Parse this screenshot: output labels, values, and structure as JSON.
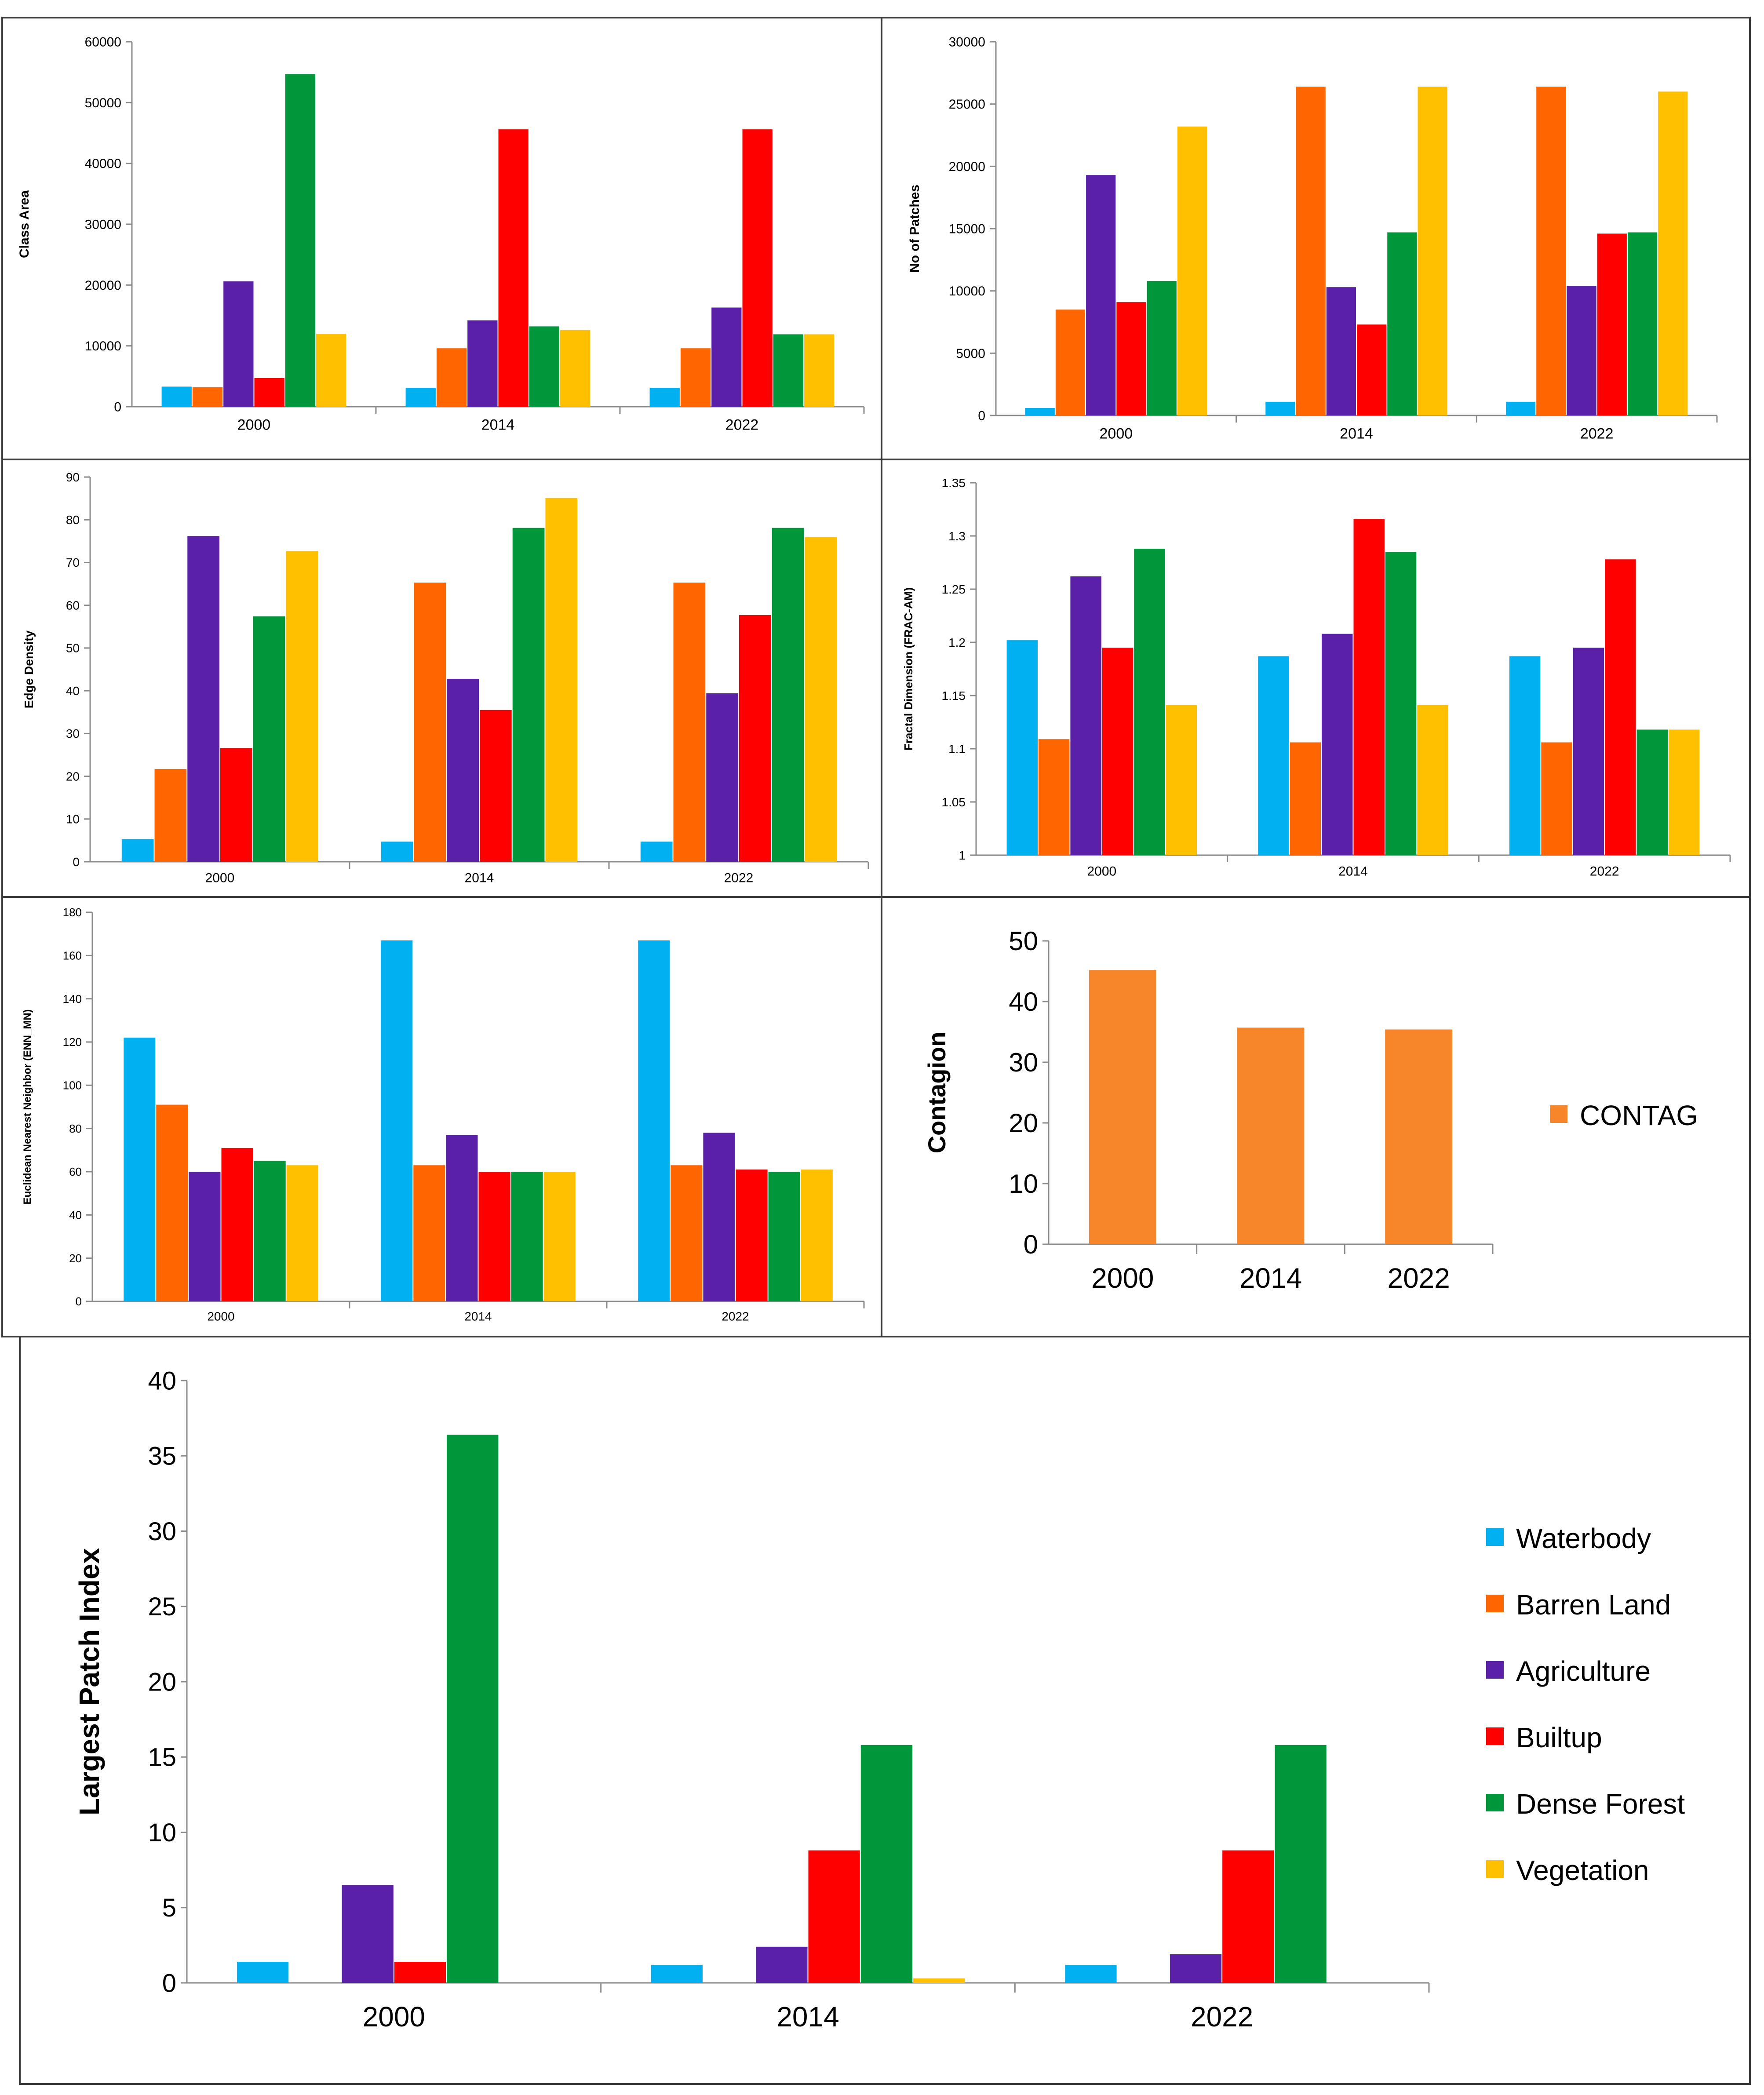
{
  "series_names": [
    "Waterbody",
    "Barren Land",
    "Agriculture",
    "Builtup",
    "Dense Forest",
    "Vegetation"
  ],
  "series_colors": [
    "#00b0f0",
    "#ff6600",
    "#5b20a8",
    "#ff0000",
    "#00963a",
    "#ffc000"
  ],
  "contag_color": "#f7862a",
  "chart_data": [
    {
      "id": "class_area",
      "type": "bar",
      "title": "",
      "xlabel": "",
      "ylabel": "Class Area",
      "categories": [
        "2000",
        "2014",
        "2022"
      ],
      "ylim": [
        0,
        60000
      ],
      "yticks": [
        0,
        10000,
        20000,
        30000,
        40000,
        50000,
        60000
      ],
      "legend": "none",
      "series": [
        {
          "name": "Waterbody",
          "values": [
            3300,
            3100,
            3100
          ]
        },
        {
          "name": "Barren Land",
          "values": [
            3200,
            9600,
            9600
          ]
        },
        {
          "name": "Agriculture",
          "values": [
            20600,
            14200,
            16300
          ]
        },
        {
          "name": "Builtup",
          "values": [
            4700,
            45600,
            45600
          ]
        },
        {
          "name": "Dense Forest",
          "values": [
            54700,
            13200,
            11900
          ]
        },
        {
          "name": "Vegetation",
          "values": [
            12000,
            12600,
            11900
          ]
        }
      ]
    },
    {
      "id": "no_of_patches",
      "type": "bar",
      "title": "",
      "xlabel": "",
      "ylabel": "No of Patches",
      "categories": [
        "2000",
        "2014",
        "2022"
      ],
      "ylim": [
        0,
        30000
      ],
      "yticks": [
        0,
        5000,
        10000,
        15000,
        20000,
        25000,
        30000
      ],
      "legend": "none",
      "series": [
        {
          "name": "Waterbody",
          "values": [
            600,
            1100,
            1100
          ]
        },
        {
          "name": "Barren Land",
          "values": [
            8500,
            26400,
            26400
          ]
        },
        {
          "name": "Agriculture",
          "values": [
            19300,
            10300,
            10400
          ]
        },
        {
          "name": "Builtup",
          "values": [
            9100,
            7300,
            14600
          ]
        },
        {
          "name": "Dense Forest",
          "values": [
            10800,
            14700,
            14700
          ]
        },
        {
          "name": "Vegetation",
          "values": [
            23200,
            26400,
            26000
          ]
        }
      ]
    },
    {
      "id": "edge_density",
      "type": "bar",
      "title": "",
      "xlabel": "",
      "ylabel": "Edge Density",
      "categories": [
        "2000",
        "2014",
        "2022"
      ],
      "ylim": [
        0,
        90
      ],
      "yticks": [
        0,
        10,
        20,
        30,
        40,
        50,
        60,
        70,
        80,
        90
      ],
      "legend": "none",
      "series": [
        {
          "name": "Waterbody",
          "values": [
            5.3,
            4.7,
            4.7
          ]
        },
        {
          "name": "Barren Land",
          "values": [
            21.7,
            65.3,
            65.3
          ]
        },
        {
          "name": "Agriculture",
          "values": [
            76.2,
            42.8,
            39.4
          ]
        },
        {
          "name": "Builtup",
          "values": [
            26.6,
            35.5,
            57.7
          ]
        },
        {
          "name": "Dense Forest",
          "values": [
            57.4,
            78.1,
            78.1
          ]
        },
        {
          "name": "Vegetation",
          "values": [
            72.7,
            85.1,
            75.9
          ]
        }
      ]
    },
    {
      "id": "fractal_dimension",
      "type": "bar",
      "title": "",
      "xlabel": "",
      "ylabel": "Fractal Dimension (FRAC-AM)",
      "categories": [
        "2000",
        "2014",
        "2022"
      ],
      "ylim": [
        1,
        1.35
      ],
      "yticks": [
        "1",
        "1.05",
        "1.1",
        "1.15",
        "1.2",
        "1.25",
        "1.3",
        "1.35"
      ],
      "legend": "none",
      "series": [
        {
          "name": "Waterbody",
          "values": [
            1.202,
            1.187,
            1.187
          ]
        },
        {
          "name": "Barren Land",
          "values": [
            1.109,
            1.106,
            1.106
          ]
        },
        {
          "name": "Agriculture",
          "values": [
            1.262,
            1.208,
            1.195
          ]
        },
        {
          "name": "Builtup",
          "values": [
            1.195,
            1.316,
            1.278
          ]
        },
        {
          "name": "Dense Forest",
          "values": [
            1.288,
            1.285,
            1.118
          ]
        },
        {
          "name": "Vegetation",
          "values": [
            1.141,
            1.141,
            1.118
          ]
        }
      ]
    },
    {
      "id": "enn_mn",
      "type": "bar",
      "title": "",
      "xlabel": "",
      "ylabel": "Euclidean Nearest Neighbor (ENN_MN)",
      "categories": [
        "2000",
        "2014",
        "2022"
      ],
      "ylim": [
        0,
        180
      ],
      "yticks": [
        0,
        20,
        40,
        60,
        80,
        100,
        120,
        140,
        160,
        180
      ],
      "legend": "none",
      "series": [
        {
          "name": "Waterbody",
          "values": [
            122,
            167,
            167
          ]
        },
        {
          "name": "Barren Land",
          "values": [
            91,
            63,
            63
          ]
        },
        {
          "name": "Agriculture",
          "values": [
            60,
            77,
            78
          ]
        },
        {
          "name": "Builtup",
          "values": [
            71,
            60,
            61
          ]
        },
        {
          "name": "Dense Forest",
          "values": [
            65,
            60,
            60
          ]
        },
        {
          "name": "Vegetation",
          "values": [
            63,
            60,
            61
          ]
        }
      ]
    },
    {
      "id": "contagion",
      "type": "bar",
      "title": "",
      "xlabel": "",
      "ylabel": "Contagion",
      "categories": [
        "2000",
        "2014",
        "2022"
      ],
      "ylim": [
        0,
        50
      ],
      "yticks": [
        0,
        10,
        20,
        30,
        40,
        50
      ],
      "legend": "right",
      "series": [
        {
          "name": "CONTAG",
          "values": [
            45.2,
            35.7,
            35.4
          ]
        }
      ]
    },
    {
      "id": "largest_patch_index",
      "type": "bar",
      "title": "",
      "xlabel": "",
      "ylabel": "Largest Patch Index",
      "categories": [
        "2000",
        "2014",
        "2022"
      ],
      "ylim": [
        0,
        40
      ],
      "yticks": [
        0,
        5,
        10,
        15,
        20,
        25,
        30,
        35,
        40
      ],
      "legend": "right",
      "series": [
        {
          "name": "Waterbody",
          "values": [
            1.4,
            1.2,
            1.2
          ]
        },
        {
          "name": "Barren Land",
          "values": [
            0,
            0,
            0
          ]
        },
        {
          "name": "Agriculture",
          "values": [
            6.5,
            2.4,
            1.9
          ]
        },
        {
          "name": "Builtup",
          "values": [
            1.4,
            8.8,
            8.8
          ]
        },
        {
          "name": "Dense Forest",
          "values": [
            36.4,
            15.8,
            15.8
          ]
        },
        {
          "name": "Vegetation",
          "values": [
            0,
            0.3,
            0
          ]
        }
      ]
    }
  ]
}
